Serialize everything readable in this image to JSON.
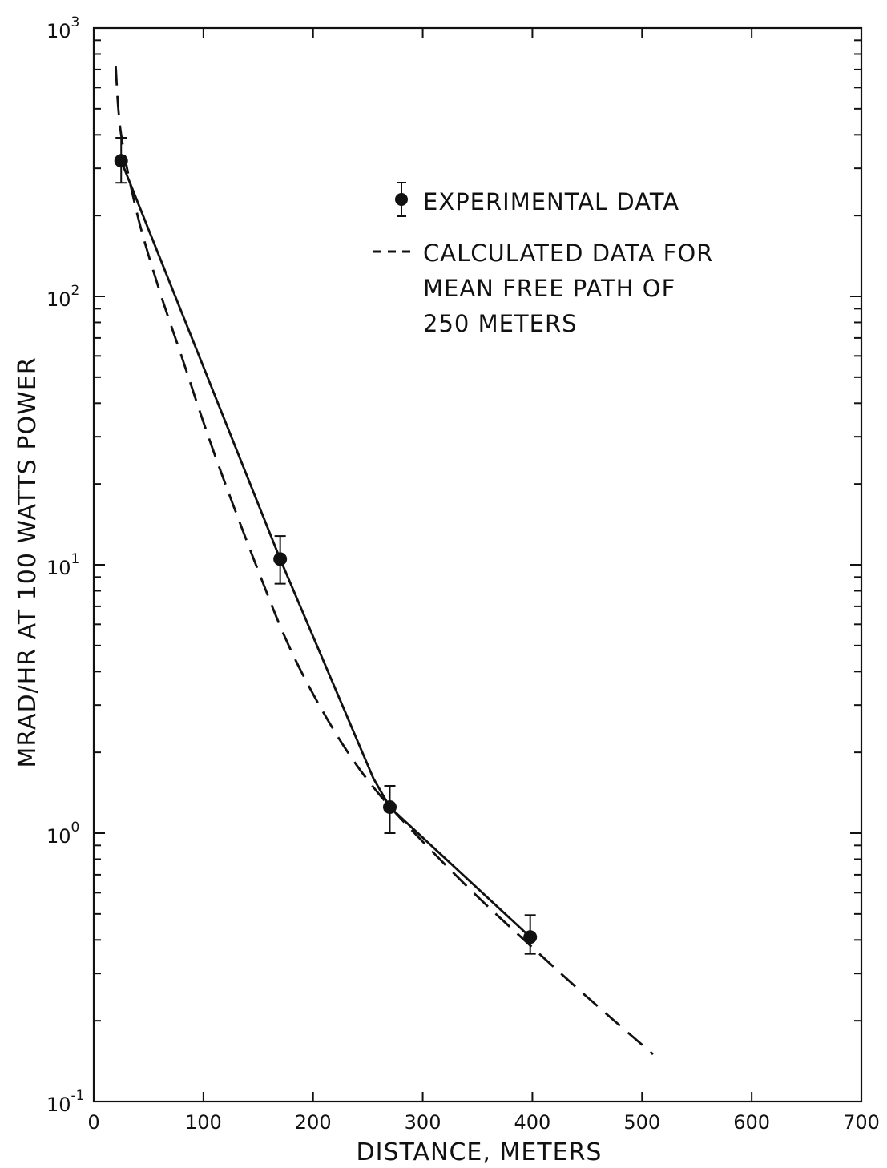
{
  "chart_data": {
    "type": "line",
    "xlabel": "DISTANCE, METERS",
    "ylabel": "MRAD/HR AT 100 WATTS POWER",
    "xlim": [
      0,
      700
    ],
    "ylim": [
      0.1,
      1000
    ],
    "y_scale": "log",
    "grid": false,
    "x_ticks": [
      "0",
      "100",
      "200",
      "300",
      "400",
      "500",
      "600",
      "700"
    ],
    "y_ticks": [
      {
        "base": "10",
        "exp": "-1",
        "value": 0.1
      },
      {
        "base": "10",
        "exp": "0",
        "value": 1
      },
      {
        "base": "10",
        "exp": "1",
        "value": 10
      },
      {
        "base": "10",
        "exp": "2",
        "value": 100
      },
      {
        "base": "10",
        "exp": "3",
        "value": 1000
      }
    ],
    "legend_position": "top-right",
    "legend": {
      "experimental": "EXPERIMENTAL DATA",
      "calculated_lines": [
        "CALCULATED DATA FOR",
        "MEAN FREE PATH OF",
        "250 METERS"
      ]
    },
    "series": [
      {
        "name": "EXPERIMENTAL DATA",
        "style": "points-with-errorbars",
        "color": "#111111",
        "points": [
          {
            "x": 25,
            "y": 320,
            "y_low": 265,
            "y_high": 390
          },
          {
            "x": 170,
            "y": 10.5,
            "y_low": 8.5,
            "y_high": 12.8
          },
          {
            "x": 270,
            "y": 1.25,
            "y_low": 1.0,
            "y_high": 1.5
          },
          {
            "x": 398,
            "y": 0.41,
            "y_low": 0.355,
            "y_high": 0.495
          }
        ]
      },
      {
        "name": "experimental-fit",
        "style": "solid",
        "color": "#111111",
        "points": [
          {
            "x": 25,
            "y": 320
          },
          {
            "x": 170,
            "y": 10.5
          },
          {
            "x": 255,
            "y": 1.6
          },
          {
            "x": 270,
            "y": 1.25
          },
          {
            "x": 398,
            "y": 0.41
          }
        ]
      },
      {
        "name": "CALCULATED DATA FOR MEAN FREE PATH OF 250 METERS",
        "style": "dashed",
        "color": "#111111",
        "points": [
          {
            "x": 20,
            "y": 720
          },
          {
            "x": 25,
            "y": 400
          },
          {
            "x": 40,
            "y": 200
          },
          {
            "x": 60,
            "y": 105
          },
          {
            "x": 80,
            "y": 60
          },
          {
            "x": 100,
            "y": 34
          },
          {
            "x": 120,
            "y": 20
          },
          {
            "x": 150,
            "y": 9.5
          },
          {
            "x": 175,
            "y": 5.3
          },
          {
            "x": 200,
            "y": 3.3
          },
          {
            "x": 230,
            "y": 2.05
          },
          {
            "x": 260,
            "y": 1.4
          },
          {
            "x": 300,
            "y": 0.93
          },
          {
            "x": 350,
            "y": 0.58
          },
          {
            "x": 400,
            "y": 0.375
          },
          {
            "x": 450,
            "y": 0.245
          },
          {
            "x": 510,
            "y": 0.15
          }
        ]
      }
    ]
  }
}
